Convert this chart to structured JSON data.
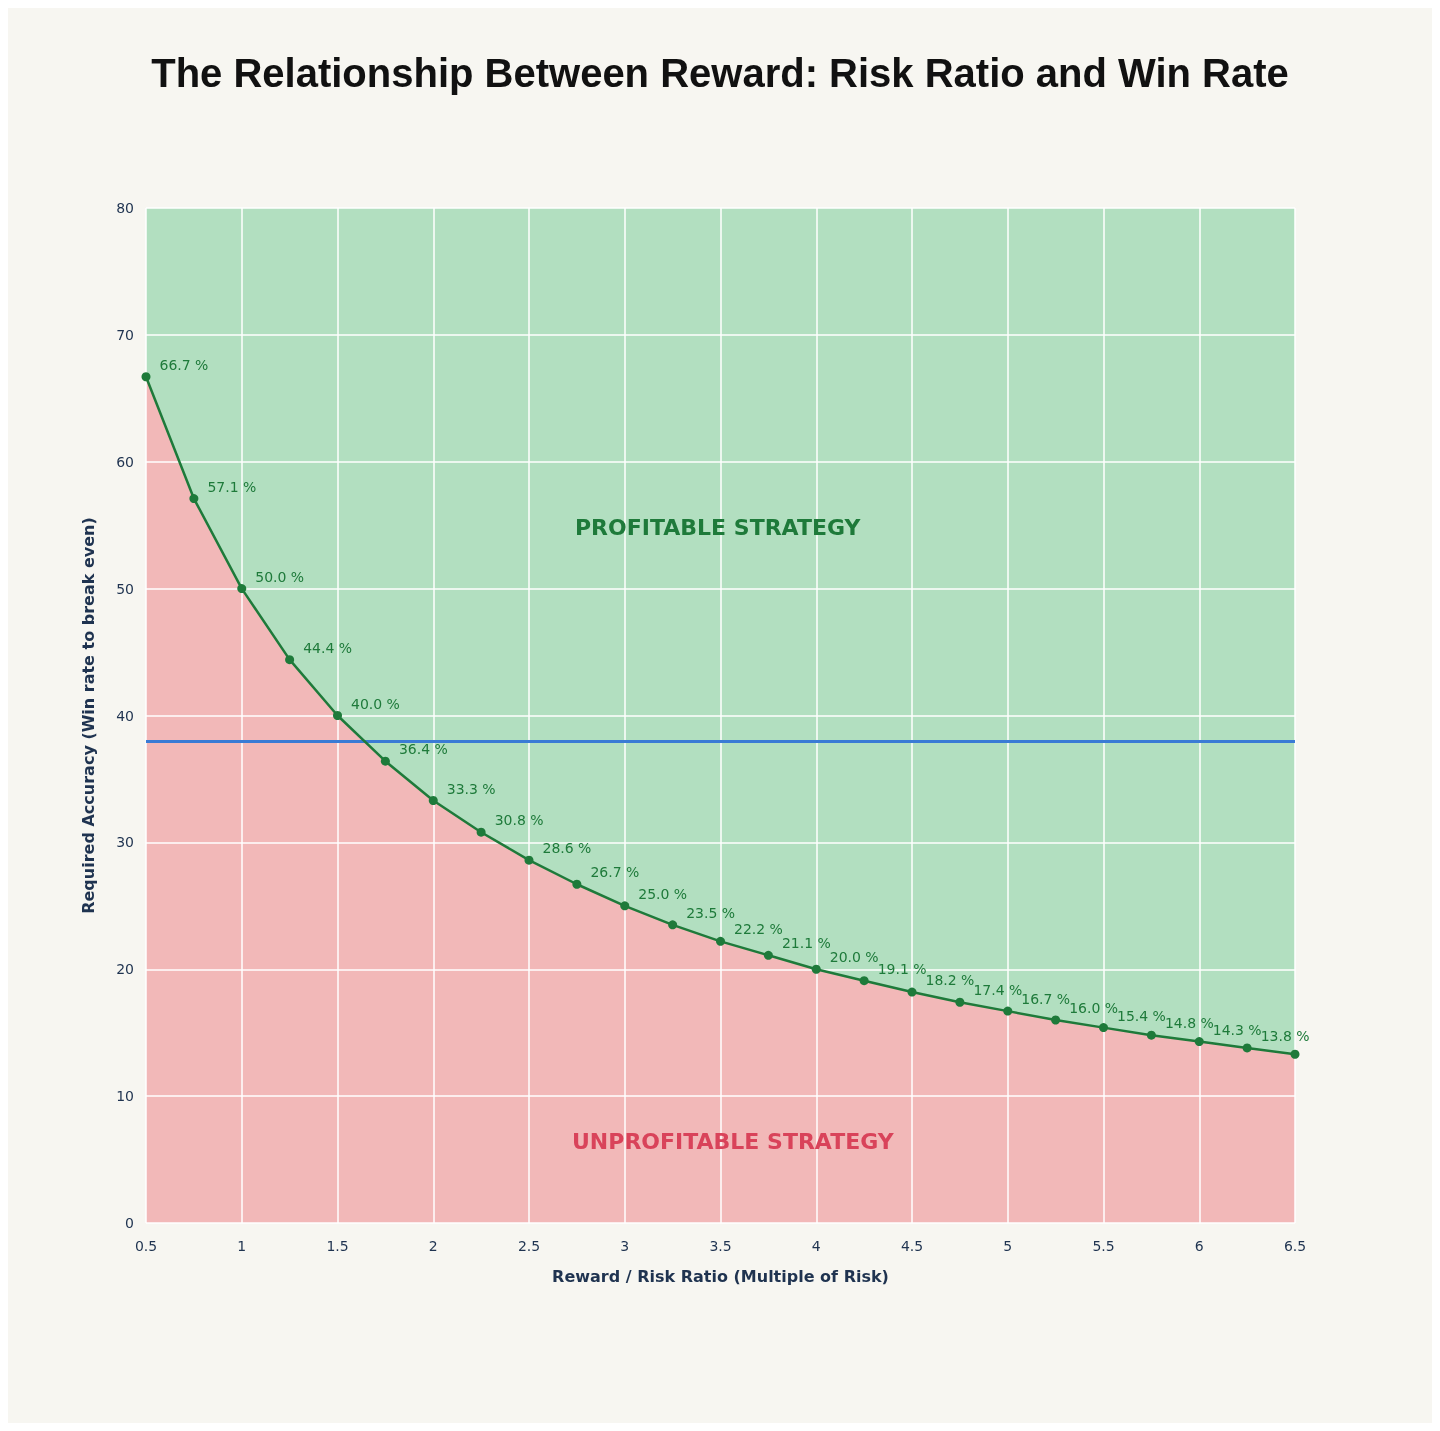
{
  "chart_data": {
    "type": "area",
    "title": "The Relationship Between Reward: Risk Ratio and Win Rate",
    "xlabel": "Reward / Risk Ratio (Multiple of Risk)",
    "ylabel": "Required Accuracy (Win rate to break even)",
    "x": [
      0.5,
      0.75,
      1,
      1.25,
      1.5,
      1.75,
      2,
      2.25,
      2.5,
      2.75,
      3,
      3.25,
      3.5,
      3.75,
      4,
      4.25,
      4.5,
      4.75,
      5,
      5.25,
      5.5,
      5.75,
      6,
      6.25,
      6.5
    ],
    "series": [
      {
        "marker": "none",
        "color": "#f2b8b8",
        "values": [
          66.7,
          57.1,
          50.0,
          44.4,
          40.0,
          36.4,
          33.3,
          30.8,
          28.6,
          26.7,
          25.0,
          23.5,
          22.2,
          21.1,
          20.0,
          19.1,
          18.2,
          17.4,
          16.7,
          16.0,
          15.4,
          14.8,
          14.3,
          13.8,
          13.3
        ]
      },
      {
        "type": "line",
        "color": "#1e7a3a",
        "values": [
          66.7,
          57.1,
          50.0,
          44.4,
          40.0,
          36.4,
          33.3,
          30.8,
          28.6,
          26.7,
          25.0,
          23.5,
          22.2,
          21.1,
          20.0,
          19.1,
          18.2,
          17.4,
          16.7,
          16.0,
          15.4,
          14.8,
          14.3,
          13.8,
          13.3
        ],
        "value_labels": [
          "66.7 %",
          "57.1 %",
          "50.0 %",
          "44.4 %",
          "40.0 %",
          "36.4 %",
          "33.3 %",
          "30.8 %",
          "28.6 %",
          "26.7 %",
          "25.0 %",
          "23.5 %",
          "22.2 %",
          "21.1 %",
          "20.0 %",
          "19.1 %",
          "18.2 %",
          "17.4 %",
          "16.7 %",
          "16.0 %",
          "15.4 %",
          "14.8 %",
          "14.3 %",
          "13.8 %",
          null
        ]
      }
    ],
    "xlim": [
      0.5,
      6.5
    ],
    "xticks": [
      0.5,
      1,
      1.5,
      2,
      2.5,
      3,
      3.5,
      4,
      4.5,
      5,
      5.5,
      6,
      6.5
    ],
    "ylim": [
      0,
      80
    ],
    "yticks": [
      0,
      10,
      20,
      30,
      40,
      50,
      60,
      70,
      80
    ],
    "ref_lines": [
      {
        "axis": "y",
        "value": 38,
        "color": "#3a7bd5"
      }
    ],
    "bands": [
      {
        "axis": "x",
        "from": 0.5,
        "to": 6.5,
        "color": "#b2dfc0"
      }
    ],
    "annotations": [
      "PROFITABLE STRATEGY",
      "UNPROFITABLE STRATEGY"
    ],
    "grid": true,
    "marker": "circle",
    "line_style": "solid"
  }
}
